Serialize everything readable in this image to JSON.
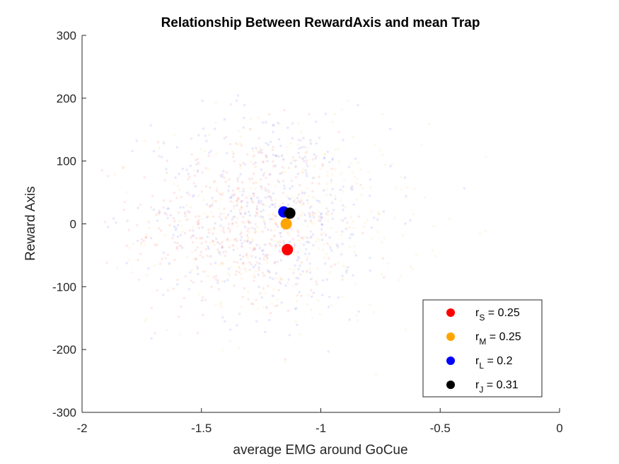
{
  "chart_data": {
    "type": "scatter",
    "title": "Relationship Between RewardAxis and mean Trap",
    "xlabel": "average EMG around GoCue",
    "ylabel": "Reward Axis",
    "xlim": [
      -2,
      0
    ],
    "ylim": [
      -300,
      300
    ],
    "xticks": [
      "-2",
      "-1.5",
      "-1",
      "-0.5",
      "0"
    ],
    "yticks": [
      "300",
      "200",
      "100",
      "0",
      "-100",
      "-200",
      "-300"
    ],
    "grid": false,
    "legend_position": "bottom-right",
    "series": [
      {
        "name": "r",
        "subscript": "S",
        "stat": " = 0.25",
        "color": "#ff0000",
        "mean": [
          -1.14,
          -41
        ],
        "spread": [
          -1.35,
          0,
          0.22,
          75
        ]
      },
      {
        "name": "r",
        "subscript": "M",
        "stat": " = 0.25",
        "color": "#ffa500",
        "mean": [
          -1.145,
          0
        ],
        "spread": [
          -1.15,
          0,
          0.28,
          80
        ]
      },
      {
        "name": "r",
        "subscript": "L",
        "stat": " = 0.2",
        "color": "#0000ff",
        "mean": [
          -1.155,
          19
        ],
        "spread": [
          -1.2,
          20,
          0.25,
          85
        ]
      },
      {
        "name": "r",
        "subscript": "J",
        "stat": " = 0.31",
        "color": "#000000",
        "mean": [
          -1.13,
          17
        ]
      }
    ]
  }
}
